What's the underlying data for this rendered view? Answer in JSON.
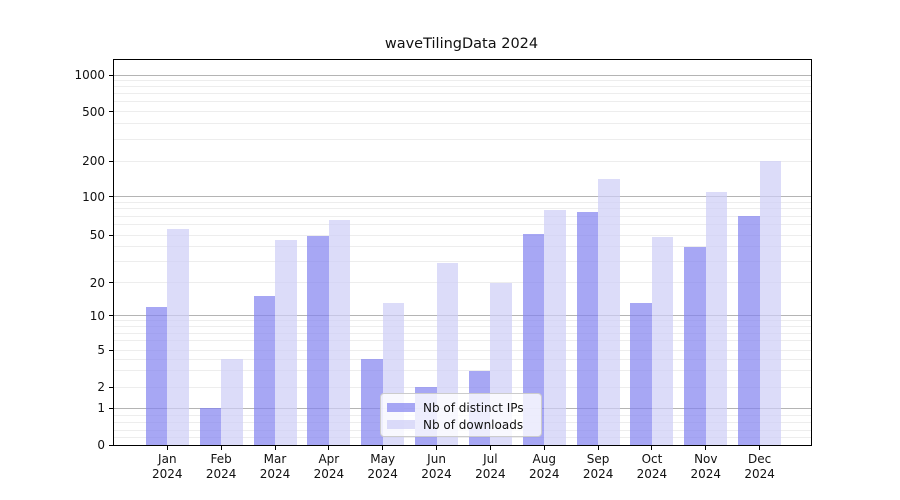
{
  "chart_data": {
    "type": "bar",
    "title": "waveTilingData 2024",
    "year": "2024",
    "categories": [
      "Jan",
      "Feb",
      "Mar",
      "Apr",
      "May",
      "Jun",
      "Jul",
      "Aug",
      "Sep",
      "Oct",
      "Nov",
      "Dec"
    ],
    "series": [
      {
        "name": "Nb of distinct IPs",
        "color": "#8282f0",
        "values": [
          12,
          1,
          15,
          49,
          4,
          2,
          3,
          51,
          75,
          13,
          40,
          70
        ]
      },
      {
        "name": "Nb of downloads",
        "color": "#cdcdf7",
        "values": [
          56,
          4,
          45,
          65,
          13,
          29,
          20,
          78,
          140,
          48,
          110,
          200
        ]
      }
    ],
    "y_ticks": [
      0,
      1,
      2,
      5,
      10,
      20,
      50,
      100,
      200,
      500,
      1000
    ],
    "ylim": [
      0,
      1330
    ],
    "yscale": "log above 1, linear 0-1",
    "grid": "horizontal major and minor gridlines",
    "legend_position": "lower center",
    "xlabel": "",
    "ylabel": ""
  }
}
